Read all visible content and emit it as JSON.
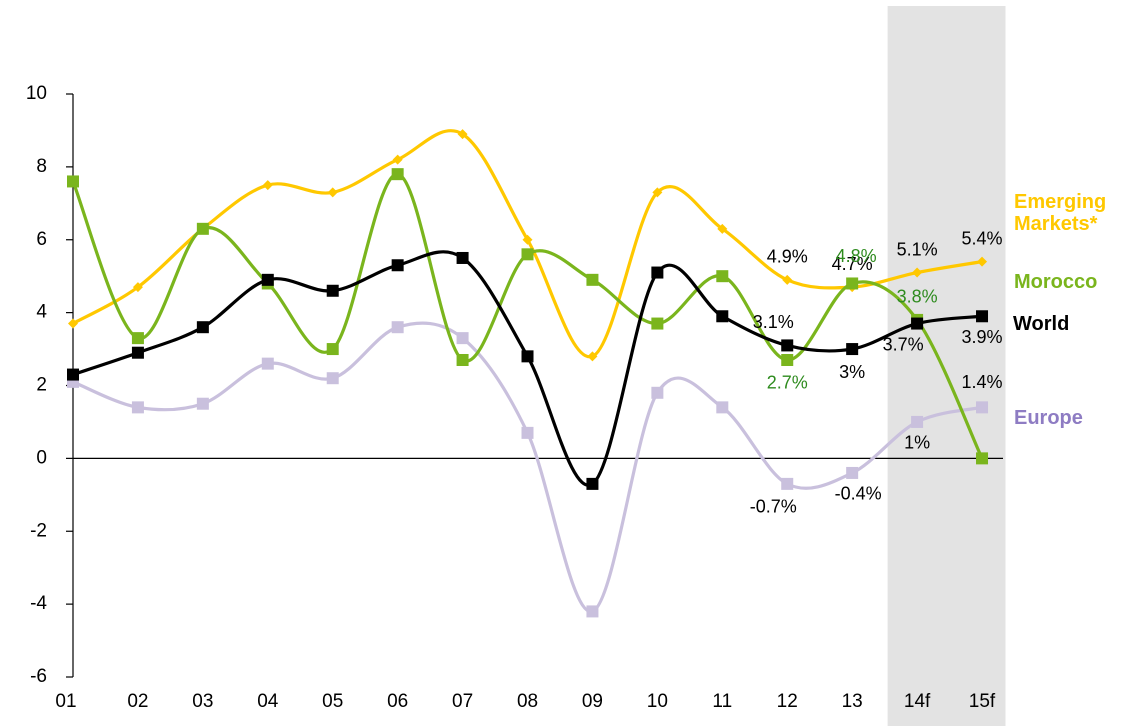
{
  "chart_data": {
    "type": "line",
    "categories": [
      "01",
      "02",
      "03",
      "04",
      "05",
      "06",
      "07",
      "08",
      "09",
      "10",
      "11",
      "12",
      "13",
      "14f",
      "15f"
    ],
    "forecast_categories": [
      "14f",
      "15f"
    ],
    "ylim": [
      -6,
      10
    ],
    "yticks": [
      -6,
      -4,
      -2,
      0,
      2,
      4,
      6,
      8,
      10
    ],
    "series": [
      {
        "name": "Emerging Markets*",
        "color": "#ffc800",
        "legend_color": "#ffc800",
        "label_color": "#000000",
        "marker": "diamond",
        "values": [
          3.7,
          4.7,
          6.3,
          7.5,
          7.3,
          8.2,
          8.9,
          6.0,
          2.8,
          7.3,
          6.3,
          4.9,
          4.7,
          5.1,
          5.4
        ],
        "value_labels": [
          null,
          null,
          null,
          null,
          null,
          null,
          null,
          null,
          null,
          null,
          null,
          "4.9%",
          "4.7%",
          "5.1%",
          "5.4%"
        ]
      },
      {
        "name": "Morocco",
        "color": "#7ab51d",
        "legend_color": "#7ab51d",
        "label_color": "#2e8b1e",
        "marker": "square",
        "values": [
          7.6,
          3.3,
          6.3,
          4.8,
          3.0,
          7.8,
          2.7,
          5.6,
          4.9,
          3.7,
          5.0,
          2.7,
          4.8,
          3.8,
          0.0
        ],
        "value_labels": [
          null,
          null,
          null,
          null,
          null,
          null,
          null,
          null,
          null,
          null,
          null,
          "2.7%",
          "4.8%",
          "3.8%",
          null
        ]
      },
      {
        "name": "World",
        "color": "#000000",
        "legend_color": "#000000",
        "label_color": "#000000",
        "marker": "square",
        "values": [
          2.3,
          2.9,
          3.6,
          4.9,
          4.6,
          5.3,
          5.5,
          2.8,
          -0.7,
          5.1,
          3.9,
          3.1,
          3.0,
          3.7,
          3.9
        ],
        "value_labels": [
          null,
          null,
          null,
          null,
          null,
          null,
          null,
          null,
          null,
          null,
          null,
          "3.1%",
          "3%",
          "3.7%",
          "3.9%"
        ]
      },
      {
        "name": "Europe",
        "color": "#c9c0dd",
        "legend_color": "#8e7cc3",
        "label_color": "#000000",
        "marker": "square",
        "values": [
          2.1,
          1.4,
          1.5,
          2.6,
          2.2,
          3.6,
          3.3,
          0.7,
          -4.2,
          1.8,
          1.4,
          -0.7,
          -0.4,
          1.0,
          1.4
        ],
        "value_labels": [
          null,
          null,
          null,
          null,
          null,
          null,
          null,
          null,
          null,
          null,
          null,
          "-0.7%",
          "-0.4%",
          "1%",
          "1.4%"
        ]
      }
    ]
  }
}
